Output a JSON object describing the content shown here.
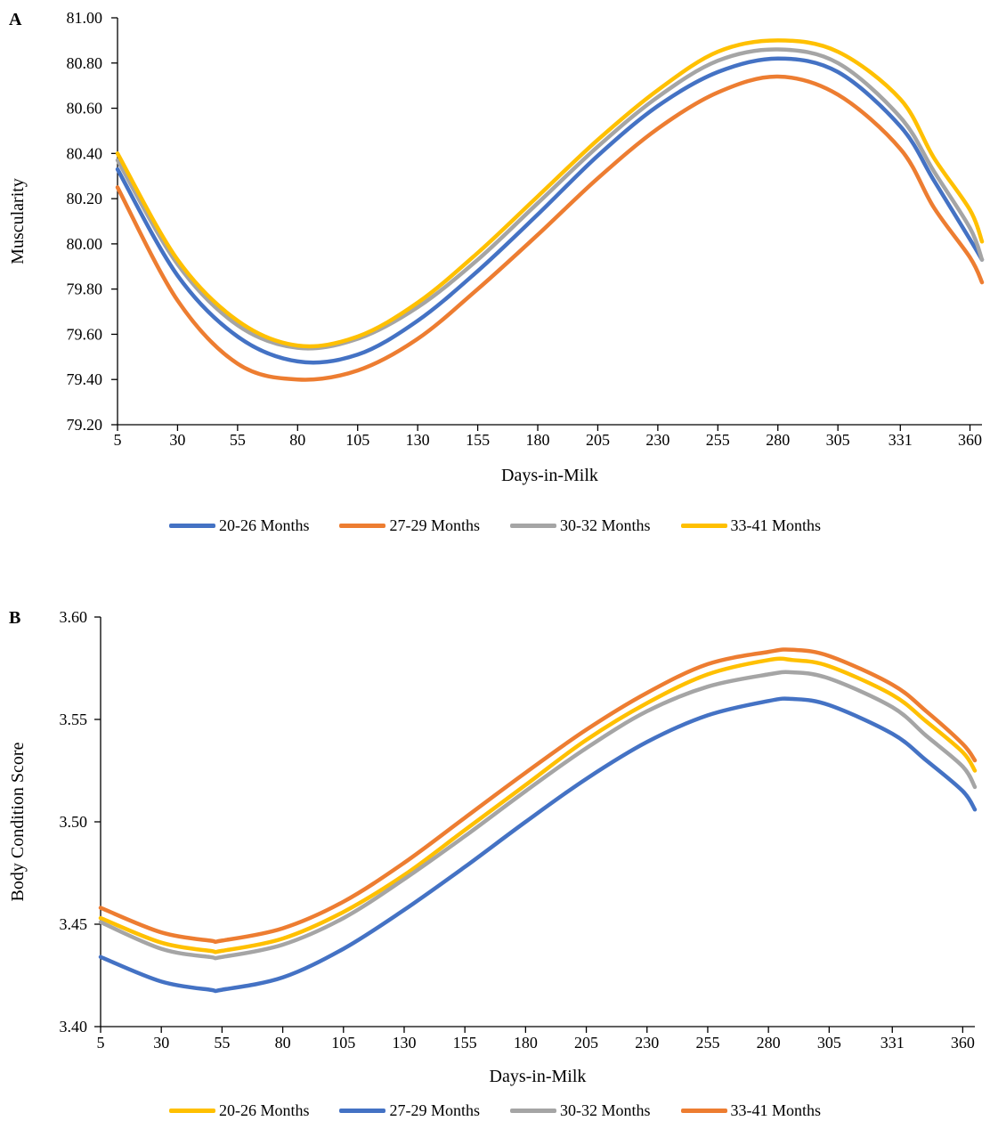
{
  "chart_data": [
    {
      "panel_label": "A",
      "type": "line",
      "xlabel": "Days-in-Milk",
      "ylabel": "Muscularity",
      "xlim": [
        5,
        365
      ],
      "ylim": [
        79.2,
        81.0
      ],
      "x_ticks": [
        5,
        30,
        55,
        80,
        105,
        130,
        155,
        180,
        205,
        230,
        255,
        280,
        305,
        331,
        360
      ],
      "y_ticks": [
        "79.20",
        "79.40",
        "79.60",
        "79.80",
        "80.00",
        "80.20",
        "80.40",
        "80.60",
        "80.80",
        "81.00"
      ],
      "grid": false,
      "legend": "bottom",
      "x": [
        5,
        30,
        55,
        80,
        105,
        130,
        155,
        180,
        205,
        230,
        255,
        280,
        305,
        331,
        345,
        360,
        365
      ],
      "series": [
        {
          "name": "20-26 Months",
          "color": "#4472C4",
          "values": [
            80.33,
            79.86,
            79.59,
            79.48,
            79.51,
            79.66,
            79.88,
            80.13,
            80.39,
            80.61,
            80.76,
            80.82,
            80.76,
            80.52,
            80.28,
            80.02,
            79.93
          ]
        },
        {
          "name": "27-29 Months",
          "color": "#ED7D31",
          "values": [
            80.25,
            79.75,
            79.47,
            79.4,
            79.44,
            79.58,
            79.8,
            80.04,
            80.29,
            80.51,
            80.67,
            80.74,
            80.66,
            80.42,
            80.16,
            79.94,
            79.83
          ]
        },
        {
          "name": "30-32 Months",
          "color": "#A5A5A5",
          "values": [
            80.37,
            79.91,
            79.64,
            79.54,
            79.58,
            79.72,
            79.93,
            80.18,
            80.43,
            80.65,
            80.81,
            80.86,
            80.8,
            80.56,
            80.32,
            80.07,
            79.93
          ]
        },
        {
          "name": "33-41 Months",
          "color": "#FFC000",
          "values": [
            80.4,
            79.93,
            79.66,
            79.55,
            79.59,
            79.74,
            79.96,
            80.21,
            80.46,
            80.68,
            80.85,
            80.9,
            80.85,
            80.64,
            80.38,
            80.15,
            80.01
          ]
        }
      ]
    },
    {
      "panel_label": "B",
      "type": "line",
      "xlabel": "Days-in-Milk",
      "ylabel": "Body Condition Score",
      "xlim": [
        5,
        365
      ],
      "ylim": [
        3.4,
        3.6
      ],
      "x_ticks": [
        5,
        30,
        55,
        80,
        105,
        130,
        155,
        180,
        205,
        230,
        255,
        280,
        305,
        331,
        360
      ],
      "y_ticks": [
        "3.40",
        "3.45",
        "3.50",
        "3.55",
        "3.60"
      ],
      "grid": false,
      "legend": "bottom",
      "x": [
        5,
        30,
        50,
        55,
        80,
        105,
        130,
        155,
        180,
        205,
        230,
        255,
        280,
        290,
        305,
        331,
        345,
        360,
        365
      ],
      "series": [
        {
          "name": "20-26 Months",
          "color": "#FFC000",
          "values": [
            3.453,
            3.441,
            3.437,
            3.437,
            3.443,
            3.456,
            3.474,
            3.496,
            3.518,
            3.54,
            3.558,
            3.572,
            3.579,
            3.579,
            3.576,
            3.562,
            3.549,
            3.534,
            3.525
          ]
        },
        {
          "name": "27-29 Months",
          "color": "#4472C4",
          "values": [
            3.434,
            3.422,
            3.418,
            3.418,
            3.424,
            3.438,
            3.457,
            3.478,
            3.5,
            3.521,
            3.539,
            3.552,
            3.559,
            3.56,
            3.557,
            3.543,
            3.53,
            3.515,
            3.506
          ]
        },
        {
          "name": "30-32 Months",
          "color": "#A5A5A5",
          "values": [
            3.451,
            3.438,
            3.434,
            3.434,
            3.44,
            3.453,
            3.472,
            3.493,
            3.515,
            3.536,
            3.554,
            3.566,
            3.572,
            3.573,
            3.57,
            3.556,
            3.542,
            3.527,
            3.517
          ]
        },
        {
          "name": "33-41 Months",
          "color": "#ED7D31",
          "values": [
            3.458,
            3.446,
            3.442,
            3.442,
            3.448,
            3.461,
            3.48,
            3.502,
            3.524,
            3.545,
            3.563,
            3.577,
            3.583,
            3.584,
            3.581,
            3.567,
            3.554,
            3.538,
            3.53
          ]
        }
      ]
    }
  ]
}
